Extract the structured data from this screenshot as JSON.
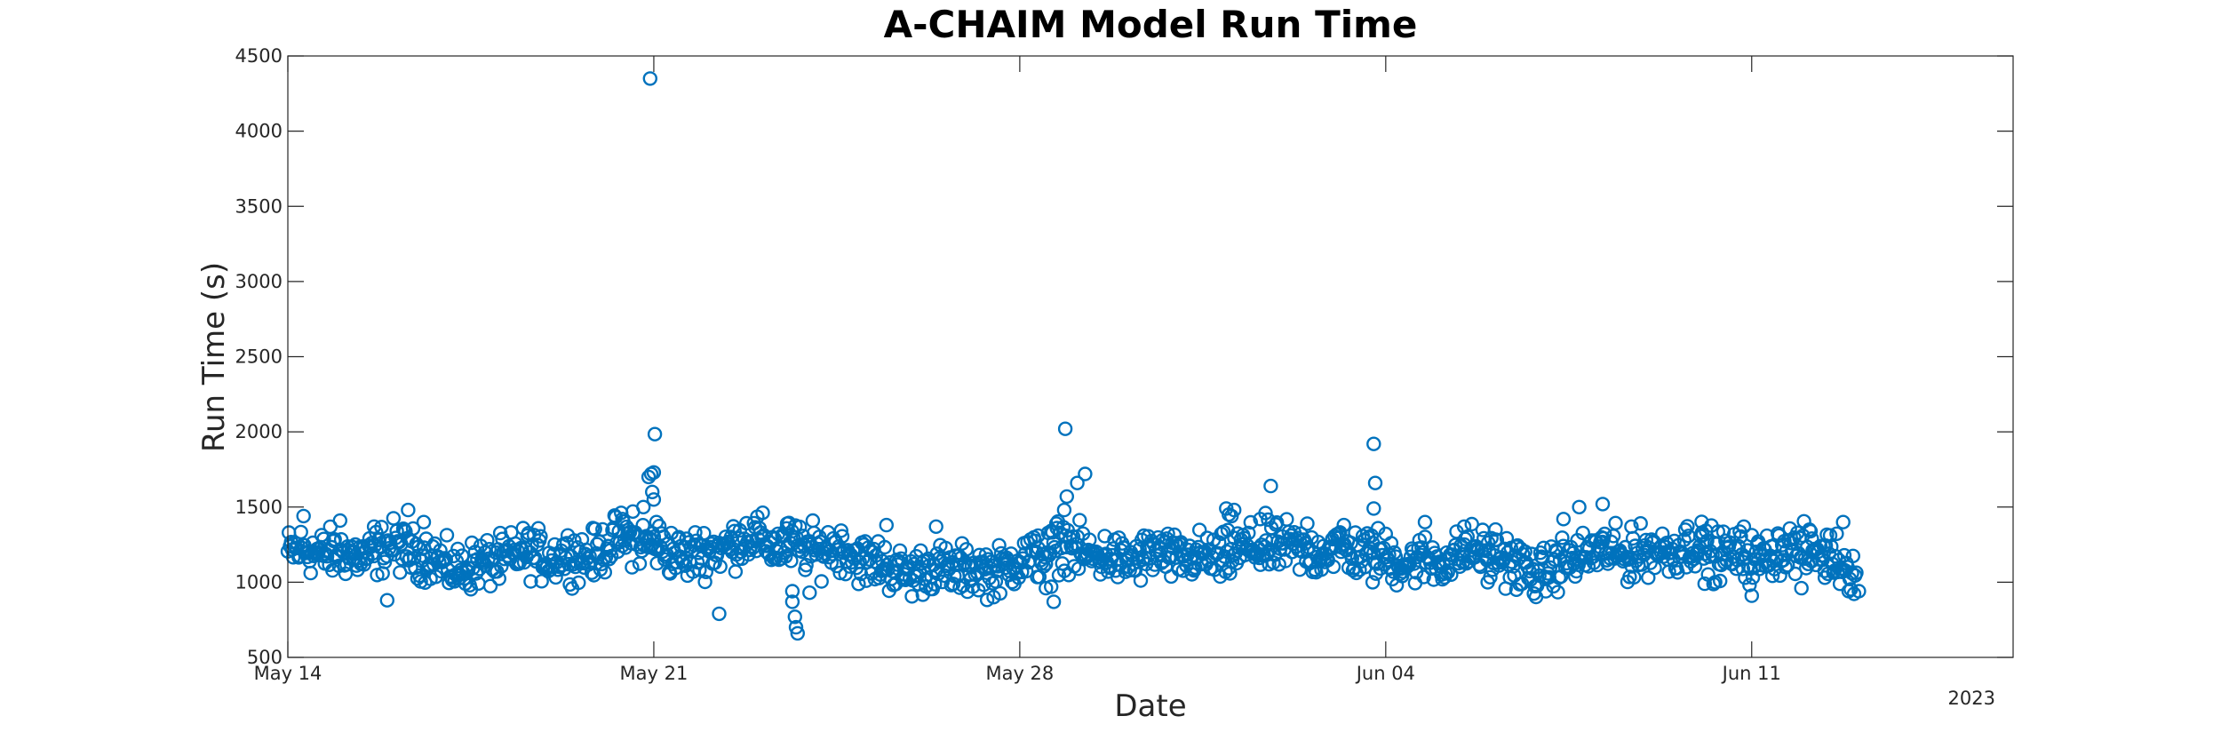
{
  "chart_data": {
    "type": "scatter",
    "title": "A-CHAIM Model Run Time",
    "xlabel": "Date",
    "ylabel": "Run Time (s)",
    "year_label": "2023",
    "x_unit": "days after May 14 2023 00:00",
    "xlim": [
      0,
      33
    ],
    "ylim": [
      500,
      4500
    ],
    "x_ticks": [
      {
        "label": "May 14",
        "x": 0
      },
      {
        "label": "May 21",
        "x": 7
      },
      {
        "label": "May 28",
        "x": 14
      },
      {
        "label": "Jun 04",
        "x": 21
      },
      {
        "label": "Jun 11",
        "x": 28
      }
    ],
    "y_ticks": [
      500,
      1000,
      1500,
      2000,
      2500,
      3000,
      3500,
      4000,
      4500
    ],
    "grid": false,
    "marker": "circle-open",
    "color": "#0072BD",
    "series_shape": [
      [
        0.0,
        1190
      ],
      [
        1.0,
        1180
      ],
      [
        2.0,
        1240
      ],
      [
        3.0,
        1100
      ],
      [
        4.0,
        1150
      ],
      [
        5.0,
        1170
      ],
      [
        6.0,
        1220
      ],
      [
        6.5,
        1280
      ],
      [
        7.0,
        1230
      ],
      [
        8.0,
        1200
      ],
      [
        9.0,
        1280
      ],
      [
        10.0,
        1240
      ],
      [
        11.0,
        1150
      ],
      [
        12.0,
        1080
      ],
      [
        13.0,
        1060
      ],
      [
        14.0,
        1150
      ],
      [
        15.0,
        1220
      ],
      [
        16.0,
        1160
      ],
      [
        17.0,
        1150
      ],
      [
        18.0,
        1200
      ],
      [
        19.0,
        1210
      ],
      [
        20.0,
        1240
      ],
      [
        21.0,
        1140
      ],
      [
        22.0,
        1170
      ],
      [
        23.0,
        1180
      ],
      [
        24.0,
        1080
      ],
      [
        25.0,
        1180
      ],
      [
        26.0,
        1220
      ],
      [
        27.0,
        1210
      ],
      [
        28.0,
        1180
      ],
      [
        29.0,
        1200
      ],
      [
        29.5,
        1180
      ],
      [
        30.0,
        1120
      ]
    ],
    "outliers": [
      [
        6.93,
        4350
      ],
      [
        7.02,
        1985
      ],
      [
        6.95,
        1720
      ],
      [
        7.0,
        1730
      ],
      [
        6.97,
        1600
      ],
      [
        7.0,
        1550
      ],
      [
        6.9,
        1700
      ],
      [
        7.05,
        1400
      ],
      [
        6.6,
        1470
      ],
      [
        6.8,
        1500
      ],
      [
        6.4,
        1420
      ],
      [
        8.25,
        790
      ],
      [
        9.65,
        940
      ],
      [
        9.65,
        870
      ],
      [
        9.7,
        770
      ],
      [
        9.72,
        700
      ],
      [
        9.75,
        660
      ],
      [
        9.98,
        930
      ],
      [
        9.55,
        1390
      ],
      [
        11.45,
        1380
      ],
      [
        12.4,
        1370
      ],
      [
        1.9,
        880
      ],
      [
        0.3,
        1440
      ],
      [
        2.3,
        1480
      ],
      [
        1.65,
        1370
      ],
      [
        1.0,
        1410
      ],
      [
        2.6,
        1400
      ],
      [
        14.87,
        2020
      ],
      [
        15.25,
        1720
      ],
      [
        15.1,
        1660
      ],
      [
        14.9,
        1570
      ],
      [
        14.85,
        1480
      ],
      [
        14.7,
        1390
      ],
      [
        14.6,
        970
      ],
      [
        14.5,
        960
      ],
      [
        14.65,
        870
      ],
      [
        14.35,
        1310
      ],
      [
        18.0,
        1450
      ],
      [
        17.95,
        1490
      ],
      [
        18.1,
        1480
      ],
      [
        18.05,
        1440
      ],
      [
        18.8,
        1640
      ],
      [
        18.7,
        1460
      ],
      [
        18.6,
        1420
      ],
      [
        20.77,
        1920
      ],
      [
        20.8,
        1660
      ],
      [
        20.77,
        1490
      ],
      [
        20.75,
        1000
      ],
      [
        20.2,
        1380
      ],
      [
        19.5,
        1390
      ],
      [
        21.75,
        1400
      ],
      [
        22.5,
        1370
      ],
      [
        23.1,
        1350
      ],
      [
        25.15,
        1520
      ],
      [
        24.7,
        1500
      ],
      [
        24.4,
        1420
      ],
      [
        22.95,
        1000
      ],
      [
        23.5,
        950
      ],
      [
        27.3,
        1000
      ],
      [
        27.1,
        990
      ],
      [
        27.05,
        1330
      ],
      [
        27.85,
        1370
      ],
      [
        28.0,
        910
      ],
      [
        29.75,
        1400
      ],
      [
        29.4,
        1030
      ],
      [
        28.95,
        960
      ],
      [
        30.05,
        940
      ],
      [
        29.15,
        1290
      ],
      [
        25.7,
        1370
      ]
    ]
  }
}
